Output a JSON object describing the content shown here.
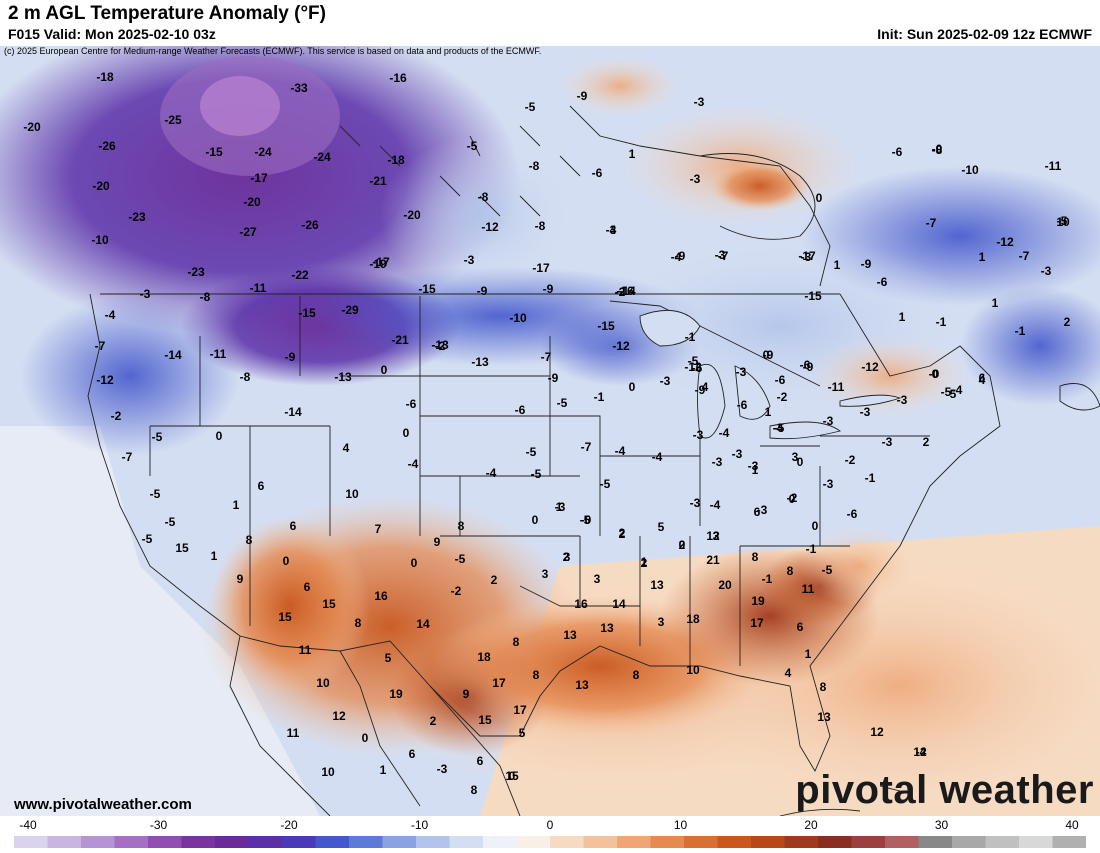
{
  "header": {
    "title": "2 m AGL Temperature Anomaly (°F)",
    "valid": "F015 Valid: Mon 2025-02-10 03z",
    "init": "Init: Sun 2025-02-09 12z ECMWF",
    "copyright": "(c) 2025 European Centre for Medium-range Weather Forecasts (ECMWF). This service is based on data and products of the ECMWF."
  },
  "footer": {
    "website": "www.pivotalweather.com",
    "brand": "pivotal weather"
  },
  "colorbar": {
    "min": -40,
    "max": 40,
    "tick_labels": [
      "-40",
      "-30",
      "-20",
      "-10",
      "0",
      "10",
      "20",
      "30",
      "40"
    ],
    "colors": [
      "#d9d3ec",
      "#c9b5e0",
      "#b693d3",
      "#a46fc4",
      "#8f4eb0",
      "#7a349d",
      "#6a2a98",
      "#5a2fa8",
      "#4a3ab8",
      "#4458cc",
      "#5d7bd6",
      "#8aa2e0",
      "#b2c4ea",
      "#d4def2",
      "#eef1f8",
      "#f8efe6",
      "#f6dbc3",
      "#f3c29d",
      "#eea676",
      "#e58a52",
      "#d86f35",
      "#c9581f",
      "#b8471a",
      "#a03a1c",
      "#882f22",
      "#9a4040",
      "#b06060",
      "#888888",
      "#a8a8a8",
      "#c0c0c0",
      "#d8d8d8",
      "#b0b0b0"
    ]
  },
  "map_data": {
    "type": "temperature-anomaly-map",
    "region": "North America",
    "units": "°F",
    "point_labels": [
      {
        "text": "-18"
      },
      {
        "text": "-33"
      },
      {
        "text": "-16"
      },
      {
        "text": "-25"
      },
      {
        "text": "-20"
      },
      {
        "text": "-26"
      },
      {
        "text": "-15"
      },
      {
        "text": "-24"
      },
      {
        "text": "-24"
      },
      {
        "text": "-18"
      },
      {
        "text": "-20"
      },
      {
        "text": "-17"
      },
      {
        "text": "-21"
      },
      {
        "text": "-23"
      },
      {
        "text": "-20"
      },
      {
        "text": "-27"
      },
      {
        "text": "-26"
      },
      {
        "text": "-20"
      },
      {
        "text": "-10"
      },
      {
        "text": "-23"
      },
      {
        "text": "-22"
      },
      {
        "text": "-17"
      },
      {
        "text": "-3"
      },
      {
        "text": "-8"
      },
      {
        "text": "-11"
      },
      {
        "text": "-15"
      },
      {
        "text": "-29"
      },
      {
        "text": "-4"
      },
      {
        "text": "-7"
      },
      {
        "text": "-14"
      },
      {
        "text": "-11"
      },
      {
        "text": "-9"
      },
      {
        "text": "-21"
      },
      {
        "text": "-13"
      },
      {
        "text": "-12"
      },
      {
        "text": "-8"
      },
      {
        "text": "-13"
      },
      {
        "text": "0"
      },
      {
        "text": "-14"
      },
      {
        "text": "-2"
      },
      {
        "text": "-5"
      },
      {
        "text": "0"
      },
      {
        "text": "-6"
      },
      {
        "text": "0"
      },
      {
        "text": "-7"
      },
      {
        "text": "4"
      },
      {
        "text": "-4"
      },
      {
        "text": "-5"
      },
      {
        "text": "6"
      },
      {
        "text": "-5"
      },
      {
        "text": "10"
      },
      {
        "text": "1"
      },
      {
        "text": "-5"
      },
      {
        "text": "6"
      },
      {
        "text": "7"
      },
      {
        "text": "15"
      },
      {
        "text": "1"
      },
      {
        "text": "8"
      },
      {
        "text": "0"
      },
      {
        "text": "9"
      },
      {
        "text": "0"
      },
      {
        "text": "9"
      },
      {
        "text": "6"
      },
      {
        "text": "15"
      },
      {
        "text": "16"
      },
      {
        "text": "15"
      },
      {
        "text": "8"
      },
      {
        "text": "14"
      },
      {
        "text": "11"
      },
      {
        "text": "10"
      },
      {
        "text": "5"
      },
      {
        "text": "19"
      },
      {
        "text": "12"
      },
      {
        "text": "2"
      },
      {
        "text": "9"
      },
      {
        "text": "15"
      },
      {
        "text": "18"
      },
      {
        "text": "17"
      },
      {
        "text": "17"
      },
      {
        "text": "11"
      },
      {
        "text": "0"
      },
      {
        "text": "6"
      },
      {
        "text": "10"
      },
      {
        "text": "1"
      },
      {
        "text": "-3"
      },
      {
        "text": "8"
      },
      {
        "text": "6"
      },
      {
        "text": "15"
      },
      {
        "text": "5"
      },
      {
        "text": "8"
      },
      {
        "text": "8"
      },
      {
        "text": "13"
      },
      {
        "text": "16"
      },
      {
        "text": "14"
      },
      {
        "text": "13"
      },
      {
        "text": "13"
      },
      {
        "text": "8"
      },
      {
        "text": "10"
      },
      {
        "text": "8"
      },
      {
        "text": "-5"
      },
      {
        "text": "-2"
      },
      {
        "text": "2"
      },
      {
        "text": "3"
      },
      {
        "text": "3"
      },
      {
        "text": "0"
      },
      {
        "text": "-3"
      },
      {
        "text": "-5"
      },
      {
        "text": "2"
      },
      {
        "text": "-4"
      },
      {
        "text": "-5"
      },
      {
        "text": "-5"
      },
      {
        "text": "-6"
      },
      {
        "text": "-2"
      },
      {
        "text": "-13"
      },
      {
        "text": "-7"
      },
      {
        "text": "-9"
      },
      {
        "text": "-5"
      },
      {
        "text": "-1"
      },
      {
        "text": "0"
      },
      {
        "text": "-3"
      },
      {
        "text": "-4"
      },
      {
        "text": "-7"
      },
      {
        "text": "-4"
      },
      {
        "text": "-5"
      },
      {
        "text": "-3"
      },
      {
        "text": "-9"
      },
      {
        "text": "-15"
      },
      {
        "text": "-19"
      },
      {
        "text": "-17"
      },
      {
        "text": "-9"
      },
      {
        "text": "-10"
      },
      {
        "text": "-14"
      },
      {
        "text": "-15"
      },
      {
        "text": "-12"
      },
      {
        "text": "-12"
      },
      {
        "text": "-8"
      },
      {
        "text": "-5"
      },
      {
        "text": "-9"
      },
      {
        "text": "-8"
      },
      {
        "text": "-5"
      },
      {
        "text": "-8"
      },
      {
        "text": "-6"
      },
      {
        "text": "-3"
      },
      {
        "text": "1"
      },
      {
        "text": "-3"
      },
      {
        "text": "4"
      },
      {
        "text": "-9"
      },
      {
        "text": "-5"
      },
      {
        "text": "-6"
      },
      {
        "text": "-9"
      },
      {
        "text": "-3"
      },
      {
        "text": "-4"
      },
      {
        "text": "-6"
      },
      {
        "text": "-3"
      },
      {
        "text": "-3"
      },
      {
        "text": "-5"
      },
      {
        "text": "-4"
      },
      {
        "text": "-3"
      },
      {
        "text": "-3"
      },
      {
        "text": "-2"
      },
      {
        "text": "1"
      },
      {
        "text": "3"
      },
      {
        "text": "1"
      },
      {
        "text": "0"
      },
      {
        "text": "-3"
      },
      {
        "text": "-1"
      },
      {
        "text": "4"
      },
      {
        "text": "-6"
      },
      {
        "text": "-2"
      },
      {
        "text": "-15"
      },
      {
        "text": "-4"
      },
      {
        "text": "-3"
      },
      {
        "text": "-12"
      },
      {
        "text": "-8"
      },
      {
        "text": "-10"
      },
      {
        "text": "-3"
      },
      {
        "text": "-3"
      },
      {
        "text": "-7"
      },
      {
        "text": "-6"
      },
      {
        "text": "-9"
      },
      {
        "text": "-11"
      },
      {
        "text": "-3"
      },
      {
        "text": "-4"
      },
      {
        "text": "-3"
      },
      {
        "text": "0"
      },
      {
        "text": "0"
      },
      {
        "text": "-2"
      },
      {
        "text": "-3"
      },
      {
        "text": "0"
      },
      {
        "text": "-3"
      },
      {
        "text": "-1"
      },
      {
        "text": "-3"
      },
      {
        "text": "-3"
      },
      {
        "text": "5"
      },
      {
        "text": "4"
      },
      {
        "text": "2"
      },
      {
        "text": "0"
      },
      {
        "text": "1"
      },
      {
        "text": "-7"
      },
      {
        "text": "-1"
      },
      {
        "text": "2"
      },
      {
        "text": "1"
      },
      {
        "text": "-5"
      },
      {
        "text": "-9"
      },
      {
        "text": "-16"
      },
      {
        "text": "-17"
      },
      {
        "text": "-12"
      },
      {
        "text": "-6"
      },
      {
        "text": "-0"
      },
      {
        "text": "-12"
      },
      {
        "text": "-11"
      },
      {
        "text": "-1"
      },
      {
        "text": "1"
      },
      {
        "text": "-7"
      },
      {
        "text": "1"
      },
      {
        "text": "10"
      },
      {
        "text": "6"
      },
      {
        "text": "-5"
      },
      {
        "text": "-9"
      },
      {
        "text": "-0"
      },
      {
        "text": "-6"
      },
      {
        "text": "-4"
      },
      {
        "text": "-3"
      },
      {
        "text": "-6"
      },
      {
        "text": "0"
      },
      {
        "text": "-1"
      },
      {
        "text": "-5"
      },
      {
        "text": "-1"
      },
      {
        "text": "8"
      },
      {
        "text": "11"
      },
      {
        "text": "20"
      },
      {
        "text": "19"
      },
      {
        "text": "21"
      },
      {
        "text": "12"
      },
      {
        "text": "13"
      },
      {
        "text": "17"
      },
      {
        "text": "18"
      },
      {
        "text": "6"
      },
      {
        "text": "1"
      },
      {
        "text": "8"
      },
      {
        "text": "13"
      },
      {
        "text": "12"
      },
      {
        "text": "12"
      },
      {
        "text": "8"
      },
      {
        "text": "6"
      },
      {
        "text": "4"
      },
      {
        "text": "3"
      },
      {
        "text": "2"
      },
      {
        "text": "3"
      },
      {
        "text": "0"
      },
      {
        "text": "5"
      },
      {
        "text": "3"
      },
      {
        "text": "2"
      },
      {
        "text": "1"
      },
      {
        "text": "-0"
      },
      {
        "text": "2"
      },
      {
        "text": "1"
      },
      {
        "text": "-4"
      },
      {
        "text": "-2"
      },
      {
        "text": "2"
      },
      {
        "text": "0"
      },
      {
        "text": "-5"
      },
      {
        "text": "3"
      },
      {
        "text": "5"
      },
      {
        "text": "-1"
      },
      {
        "text": "5"
      }
    ]
  }
}
